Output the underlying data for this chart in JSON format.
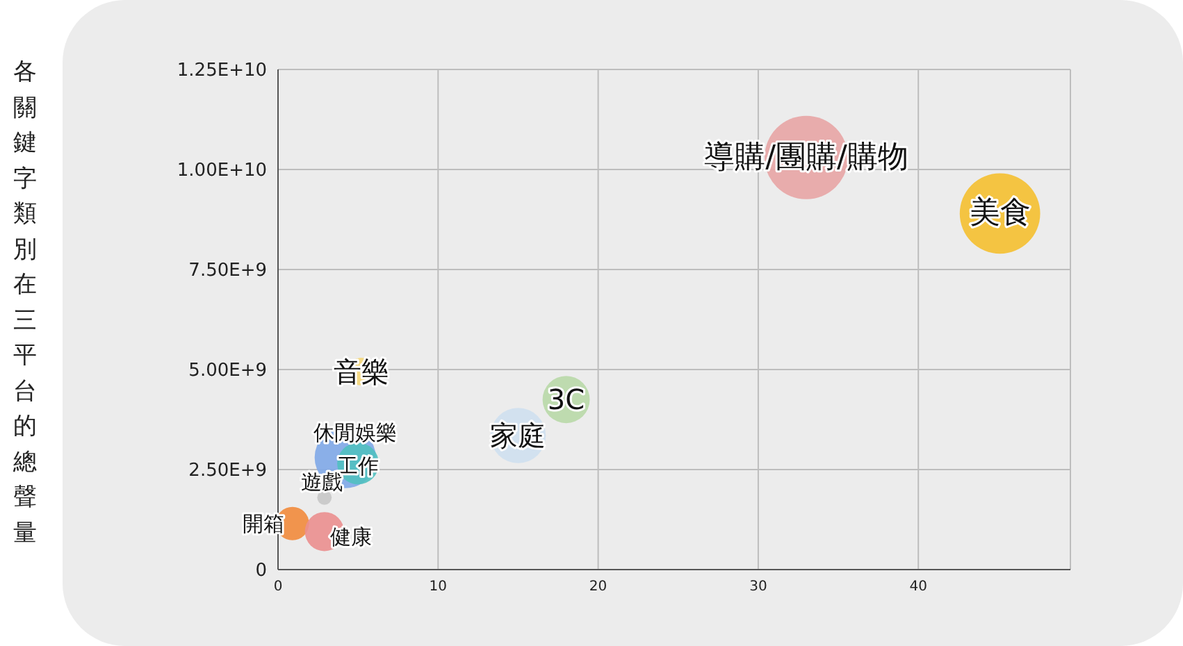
{
  "chart_data": {
    "type": "bubble",
    "ylabel": "各關鍵字類別在三平台的總聲量",
    "xlim": [
      0,
      49.5
    ],
    "xticks": [
      0,
      10,
      20,
      30,
      40
    ],
    "ylim": [
      0,
      12500000000
    ],
    "yticks": [
      {
        "value": 0,
        "label": "0"
      },
      {
        "value": 2500000000,
        "label": "2.50E+9"
      },
      {
        "value": 5000000000,
        "label": "5.00E+9"
      },
      {
        "value": 7500000000,
        "label": "7.50E+9"
      },
      {
        "value": 10000000000,
        "label": "1.00E+10"
      },
      {
        "value": 12500000000,
        "label": "1.25E+10"
      }
    ],
    "grid": true,
    "series": [
      {
        "name": "導購/團購/購物",
        "color": "#e8a5a5",
        "x": [
          33
        ],
        "values": [
          10300000000
        ],
        "sizes": [
          1
        ]
      },
      {
        "name": "美食",
        "color": "#f5c030",
        "x": [
          45.1
        ],
        "values": [
          8900000000
        ],
        "sizes": [
          0.93
        ]
      },
      {
        "name": "3C",
        "color": "#b9d9a8",
        "x": [
          18
        ],
        "values": [
          4250000000
        ],
        "sizes": [
          0.32
        ]
      },
      {
        "name": "家庭",
        "color": "#cfe0f0",
        "x": [
          15
        ],
        "values": [
          3350000000
        ],
        "sizes": [
          0.44
        ]
      },
      {
        "name": "音樂",
        "color": "#f5d77a",
        "x": [
          5.2
        ],
        "values": [
          4950000000
        ],
        "sizes": [
          0.11
        ]
      },
      {
        "name": "休閒娛樂",
        "color": "#7fa8e8",
        "x": [
          4.2
        ],
        "values": [
          2800000000
        ],
        "sizes": [
          0.54
        ]
      },
      {
        "name": "工作",
        "color": "#50c0c0",
        "x": [
          5
        ],
        "values": [
          2650000000
        ],
        "sizes": [
          0.25
        ]
      },
      {
        "name": "遊戲",
        "color": "#c8c8c8",
        "x": [
          2.9
        ],
        "values": [
          1800000000
        ],
        "sizes": [
          0.03
        ]
      },
      {
        "name": "開箱",
        "color": "#f28b3c",
        "x": [
          0.9
        ],
        "values": [
          1150000000
        ],
        "sizes": [
          0.16
        ]
      },
      {
        "name": "健康",
        "color": "#eb8f8f",
        "x": [
          2.9
        ],
        "values": [
          950000000
        ],
        "sizes": [
          0.22
        ]
      }
    ]
  }
}
